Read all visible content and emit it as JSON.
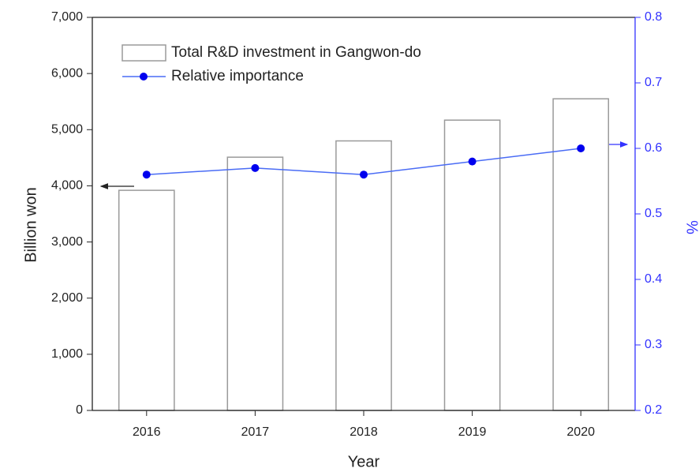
{
  "chart_data": {
    "type": "bar_line",
    "categories": [
      "2016",
      "2017",
      "2018",
      "2019",
      "2020"
    ],
    "series": [
      {
        "name": "Total R&D investment in Gangwon-do",
        "type": "bar",
        "color": "#ffffff",
        "edgecolor": "#9a9a9a",
        "values": [
          3920,
          4510,
          4800,
          5170,
          5550
        ]
      },
      {
        "name": "Relative importance",
        "type": "line",
        "axis": "y2",
        "color": "#4a6cf5",
        "markercolor": "#0000ee",
        "values": [
          0.56,
          0.57,
          0.56,
          0.58,
          0.6
        ]
      }
    ],
    "xlabel": "Year",
    "ylabel": "Billion won",
    "y2label": "%",
    "ylim": [
      0,
      7000
    ],
    "yticks": [
      0,
      {
        "value": 1000,
        "label": "1,000"
      },
      {
        "value": 2000,
        "label": "2,000"
      },
      {
        "value": 3000,
        "label": "3,000"
      },
      {
        "value": 4000,
        "label": "4,000"
      },
      {
        "value": 5000,
        "label": "5,000"
      },
      {
        "value": 6000,
        "label": "6,000"
      },
      {
        "value": 7000,
        "label": "7,000"
      }
    ],
    "y2lim": [
      0.2,
      0.8
    ],
    "y2ticks": [
      0.2,
      0.3,
      0.4,
      0.5,
      0.6,
      0.7,
      0.8
    ],
    "y2color": "#3333ff",
    "legend": "upper left"
  }
}
